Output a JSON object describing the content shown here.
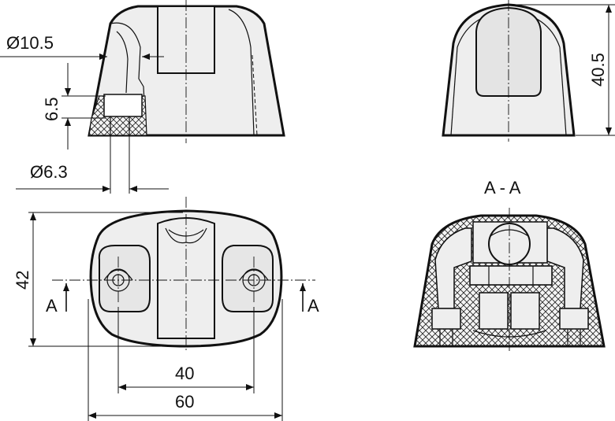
{
  "dimensions": {
    "bore_diameter": "Ø10.5",
    "bolt_diameter": "Ø6.3",
    "step_height": "6.5",
    "overall_height": "40.5",
    "overall_width": "42",
    "hole_spacing": "40",
    "overall_length": "60"
  },
  "section": {
    "title": "A - A",
    "marker_left": "A",
    "marker_right": "A"
  }
}
